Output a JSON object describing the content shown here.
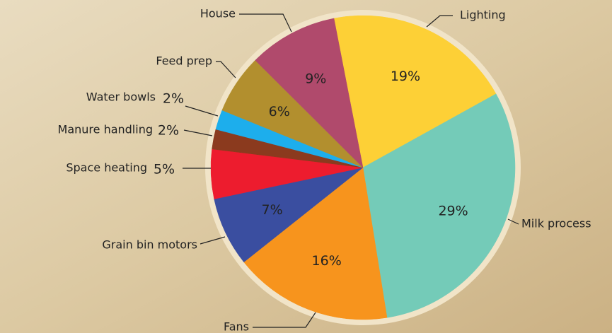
{
  "chart_data": {
    "type": "pie",
    "categories": [
      "Lighting",
      "Milk process",
      "Fans",
      "Grain bin motors",
      "Space heating",
      "Manure handling",
      "Water bowls",
      "Feed prep",
      "House"
    ],
    "values": [
      19,
      29,
      16,
      7,
      5,
      2,
      2,
      6,
      9
    ],
    "value_labels": [
      "19%",
      "29%",
      "16%",
      "7%",
      "5%",
      "2%",
      "2%",
      "6%",
      "9%"
    ],
    "colors": [
      "#fdd036",
      "#74cbb8",
      "#f7941d",
      "#3a4ea0",
      "#ed1c2e",
      "#8b3a1e",
      "#1daeec",
      "#b28f2e",
      "#b04a6c"
    ]
  }
}
